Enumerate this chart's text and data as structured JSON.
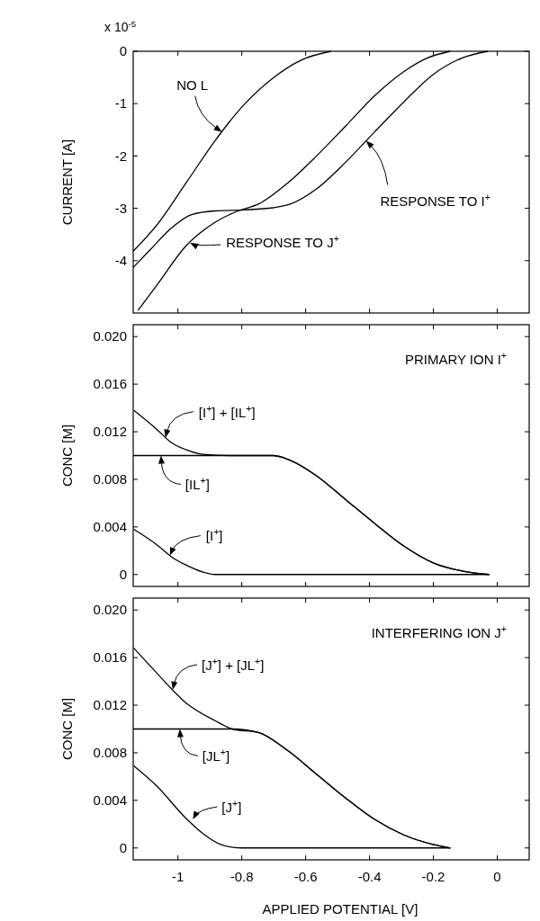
{
  "chart_data": [
    {
      "type": "line",
      "ylabel": "CURRENT [A]",
      "xlim": [
        -1.14,
        0.1
      ],
      "ylim": [
        -5,
        0
      ],
      "xticks": [
        -1,
        -0.8,
        -0.6,
        -0.4,
        -0.2,
        0
      ],
      "yticks": [
        0,
        -1,
        -2,
        -3,
        -4
      ],
      "tick_labels": "y",
      "series": [
        {
          "color": "#000000",
          "x": [
            -1.14,
            -1.066,
            -0.975,
            -0.884,
            -0.793,
            -0.702,
            -0.611,
            -0.52
          ],
          "values": [
            -3.82,
            -3.32,
            -2.52,
            -1.71,
            -1.02,
            -0.51,
            -0.16,
            0
          ]
        },
        {
          "color": "#000000",
          "x": [
            -1.14,
            -1.085,
            -1.021,
            -0.957,
            -0.884,
            -0.793,
            -0.702,
            -0.648,
            -0.566,
            -0.475,
            -0.384,
            -0.293,
            -0.202,
            -0.111,
            -0.029
          ],
          "values": [
            -4.13,
            -3.78,
            -3.38,
            -3.12,
            -3.05,
            -3.03,
            -2.99,
            -2.92,
            -2.63,
            -2.12,
            -1.54,
            -0.97,
            -0.45,
            -0.13,
            0
          ]
        },
        {
          "color": "#000000",
          "x": [
            -1.125,
            -1.066,
            -0.975,
            -0.884,
            -0.812,
            -0.748,
            -0.657,
            -0.566,
            -0.475,
            -0.384,
            -0.293,
            -0.22,
            -0.147
          ],
          "values": [
            -4.95,
            -4.47,
            -3.72,
            -3.27,
            -3.05,
            -2.92,
            -2.52,
            -2.0,
            -1.43,
            -0.85,
            -0.39,
            -0.13,
            0
          ]
        }
      ],
      "annotations": [
        "x 10$^{-5}$",
        {
          "text": "NO L",
          "x": -0.862,
          "y": -1.54
        },
        {
          "text": "RESPONSE TO J$^{+}$",
          "x": -0.962,
          "y": -3.66
        },
        {
          "text": "RESPONSE TO I$^{+}$",
          "x": -0.411,
          "y": -1.71
        }
      ]
    },
    {
      "type": "line",
      "title": "PRIMARY ION I$^{+}$",
      "ylabel": "CONC [M]",
      "xlim": [
        -1.14,
        0.1
      ],
      "ylim": [
        -0.001,
        0.021
      ],
      "xticks": [
        -1,
        -0.8,
        -0.6,
        -0.4,
        -0.2,
        0
      ],
      "yticks": [
        0,
        0.004,
        0.008,
        0.012,
        0.016,
        {
          "value": 0.02,
          "label": "0.020"
        }
      ],
      "tick_labels": "y",
      "series": [
        {
          "color": "#000000",
          "x": [
            -1.138,
            -1.066,
            -1.021,
            -0.975,
            -0.921,
            -0.839,
            -0.702,
            -0.648,
            -0.566,
            -0.475,
            -0.384,
            -0.293,
            -0.202,
            -0.111,
            -0.025
          ],
          "values": [
            0.0138,
            0.0122,
            0.0111,
            0.0105,
            0.0101,
            0.01,
            0.01,
            0.0096,
            0.0083,
            0.0063,
            0.0043,
            0.0024,
            0.001,
            0.0003,
            0
          ]
        },
        {
          "color": "#000000",
          "x": [
            -1.14,
            -0.702,
            -0.648,
            -0.566,
            -0.475,
            -0.384,
            -0.293,
            -0.202,
            -0.111,
            -0.025
          ],
          "values": [
            0.01,
            0.01,
            0.0096,
            0.0083,
            0.0063,
            0.0043,
            0.0024,
            0.001,
            0.0003,
            0
          ]
        },
        {
          "color": "#000000",
          "x": [
            -1.138,
            -1.066,
            -1.021,
            -0.975,
            -0.921,
            -0.884,
            -0.025
          ],
          "values": [
            0.0038,
            0.0025,
            0.0015,
            0.0008,
            0.0002,
            0,
            0
          ]
        }
      ],
      "annotations": [
        {
          "text": "[I$^{+}$] + [IL$^{+}$]",
          "x": -1.039,
          "y": 0.0115
        },
        {
          "text": "[IL$^{+}$]",
          "x": -1.053,
          "y": 0.01
        },
        {
          "text": "[I$^{+}$]",
          "x": -1.025,
          "y": 0.0016
        }
      ]
    },
    {
      "type": "line",
      "title": "INTERFERING ION J$^{+}$",
      "ylabel": "CONC [M]",
      "xlabel": "APPLIED POTENTIAL [V]",
      "xlim": [
        -1.14,
        0.1
      ],
      "ylim": [
        -0.001,
        0.021
      ],
      "xticks": [
        -1,
        -0.8,
        -0.6,
        -0.4,
        -0.2,
        0
      ],
      "yticks": [
        0,
        0.004,
        0.008,
        0.012,
        0.016,
        {
          "value": 0.02,
          "label": "0.020"
        }
      ],
      "series": [
        {
          "color": "#000000",
          "x": [
            -1.138,
            -1.066,
            -0.975,
            -0.884,
            -0.83,
            -0.748,
            -0.657,
            -0.566,
            -0.475,
            -0.384,
            -0.293,
            -0.202,
            -0.147
          ],
          "values": [
            0.0168,
            0.0147,
            0.0122,
            0.0107,
            0.01,
            0.0097,
            0.0082,
            0.0062,
            0.0042,
            0.0024,
            0.0011,
            0.0003,
            0
          ]
        },
        {
          "color": "#000000",
          "x": [
            -1.14,
            -0.83,
            -0.748,
            -0.657,
            -0.566,
            -0.475,
            -0.384,
            -0.293,
            -0.202,
            -0.147
          ],
          "values": [
            0.01,
            0.01,
            0.0097,
            0.0082,
            0.0062,
            0.0042,
            0.0024,
            0.0011,
            0.0003,
            0
          ]
        },
        {
          "color": "#000000",
          "x": [
            -1.138,
            -1.066,
            -0.975,
            -0.921,
            -0.866,
            -0.803,
            -0.147
          ],
          "values": [
            0.0069,
            0.0052,
            0.0025,
            0.0012,
            0.0003,
            0,
            0
          ]
        }
      ],
      "annotations": [
        {
          "text": "[J$^{+}$] + [JL$^{+}$]",
          "x": -1.016,
          "y": 0.0133
        },
        {
          "text": "[JL$^{+}$]",
          "x": -0.994,
          "y": 0.01
        },
        {
          "text": "[J$^{+}$]",
          "x": -0.953,
          "y": 0.0024
        }
      ]
    }
  ]
}
